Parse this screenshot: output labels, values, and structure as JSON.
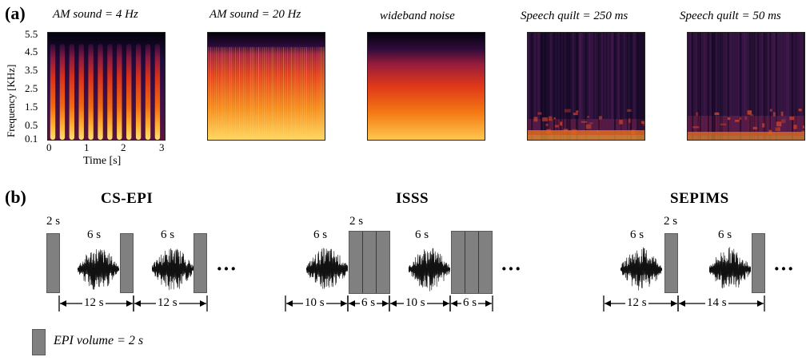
{
  "panel_a": {
    "label": "(a)",
    "titles": {
      "am4": "AM sound = 4 Hz",
      "am20": "AM sound = 20 Hz",
      "noise": "wideband noise",
      "sq250": "Speech quilt = 250 ms",
      "sq50": "Speech quilt = 50 ms"
    },
    "ylabel": "Frequency [KHz]",
    "yticks": [
      "5.5",
      "4.5",
      "3.5",
      "2.5",
      "1.5",
      "0.5",
      "0.1"
    ],
    "xticks": [
      "0",
      "1",
      "2",
      "3"
    ],
    "xlabel": "Time [s]"
  },
  "panel_b": {
    "label": "(b)",
    "schemes": {
      "cs": "CS-EPI",
      "isss": "ISSS",
      "sepims": "SEPIMS"
    },
    "labels": {
      "two_s": "2 s",
      "six_s": "6 s",
      "ten_s": "10 s",
      "twelve_s": "12 s",
      "fourteen_s": "14 s"
    },
    "ellipsis": "···",
    "legend": "EPI volume = 2 s"
  },
  "colors": {
    "epi_fill": "#808080",
    "spec_dark": "#140a28",
    "spec_hot": "#ffd35a"
  }
}
